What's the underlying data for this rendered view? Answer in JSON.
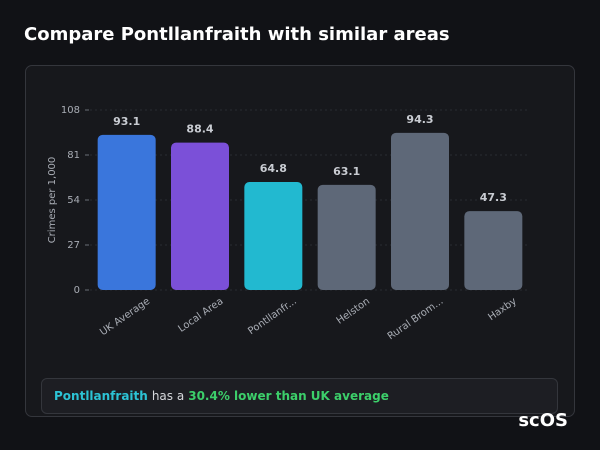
{
  "header": {
    "title": "Compare Pontllanfraith with similar areas"
  },
  "chart_data": {
    "type": "bar",
    "y_label": "Crimes per 1,000",
    "categories": [
      "UK Average",
      "Local Area",
      "Pontllanfr...",
      "Helston",
      "Rural Brom...",
      "Haxby"
    ],
    "values": [
      93.1,
      88.4,
      64.8,
      63.1,
      94.3,
      47.3
    ],
    "colors": [
      "#3a76dc",
      "#7b50d8",
      "#22b9d0",
      "#5e6878",
      "#5e6878",
      "#5e6878"
    ],
    "ylim": [
      0,
      108
    ],
    "yticks": [
      0,
      27,
      54,
      81,
      108
    ],
    "grid": true
  },
  "summary": {
    "area": "Pontllanfraith",
    "text": "has a",
    "highlight": "30.4% lower than UK average"
  },
  "branding": {
    "logo": "scOS"
  }
}
